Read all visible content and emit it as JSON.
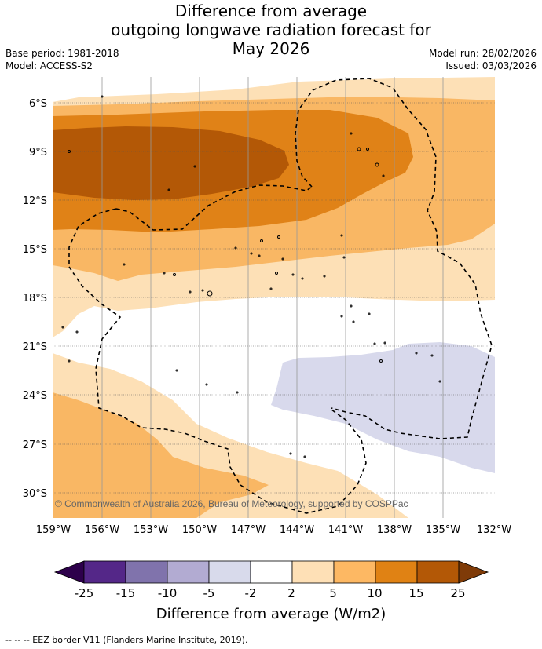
{
  "title": {
    "line1": "Difference from average",
    "line2": "outgoing longwave radiation forecast for",
    "line3": "May 2026"
  },
  "meta": {
    "base_period": "Base period: 1981-2018",
    "model": "Model: ACCESS-S2",
    "model_run": "Model run: 28/02/2026",
    "issued": "Issued: 03/03/2026"
  },
  "map": {
    "copyright": "© Commonwealth of Australia 2026, Bureau of Meteorology, supported by COSPPac",
    "lat_labels": [
      "6°S",
      "9°S",
      "12°S",
      "15°S",
      "18°S",
      "21°S",
      "24°S",
      "27°S",
      "30°S"
    ],
    "lon_labels": [
      "159°W",
      "156°W",
      "153°W",
      "150°W",
      "147°W",
      "144°W",
      "141°W",
      "138°W",
      "135°W",
      "132°W"
    ],
    "colors": {
      "pos_2_5": "#fde0b6",
      "pos_5_10": "#f9b764",
      "pos_10_15": "#e08217",
      "pos_15_25": "#b35806",
      "neg_2_5": "#d8d9ec",
      "neutral": "#ffffff"
    }
  },
  "colorbar": {
    "label": "Difference from average (W/m2)",
    "ticks": [
      "-25",
      "-15",
      "-10",
      "-5",
      "-2",
      "2",
      "5",
      "10",
      "15",
      "25"
    ],
    "colors": [
      "#2d004b",
      "#542788",
      "#8073ac",
      "#b2abd2",
      "#d8daeb",
      "#ffffff",
      "#fee0b6",
      "#fdb863",
      "#e08214",
      "#b35806",
      "#7f3b08"
    ]
  },
  "footer": "--  --  -- EEZ border V11 (Flanders Marine Institute, 2019)."
}
